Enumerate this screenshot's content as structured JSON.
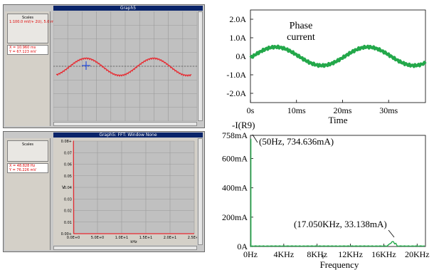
{
  "graph1": {
    "title": "Graph5",
    "scales_header": "Scales",
    "scales_line": "1:100.0 mV/+ 2U), 5.0 ms",
    "cursor_x": "X = 10.960 ms",
    "cursor_y": "Y = 67.123 mV"
  },
  "graph2": {
    "title": "Graph5: FFT: Window None",
    "scales_header": "Scales",
    "cursor_x": "X = 48.828 Hz",
    "cursor_y": "Y = 76.226 mV",
    "y_ticks": [
      "0.08+",
      "0.07",
      "0.06",
      "0.05",
      "0.04",
      "0.03",
      "0.02",
      "0.01",
      "0.00+"
    ],
    "x_ticks": [
      "0.0E+0",
      "5.0E+0",
      "1.0E+1",
      "1.5E+1",
      "2.0E+1",
      "2.5E+1"
    ],
    "x_unit": "kHz",
    "y_unit": "V"
  },
  "chart_data": [
    {
      "type": "line",
      "panel": "oscilloscope time trace",
      "x": [
        0,
        5,
        10,
        15,
        20,
        25,
        30
      ],
      "values": [
        -0.3,
        0.4,
        0.6,
        -0.4,
        -0.55,
        0.5,
        0.45
      ],
      "xlabel": "",
      "ylabel": "",
      "grid": true,
      "colors": {
        "trace": "#e8282f",
        "plot_bg": "#c0c0c0",
        "grid": "#9a9a9a"
      }
    },
    {
      "type": "line",
      "panel": "oscilloscope FFT",
      "x": [
        0,
        0.05,
        0.1,
        5,
        10,
        15,
        17,
        20,
        25
      ],
      "values": [
        0.08,
        0.08,
        0.0,
        0.0,
        0.0,
        0.0,
        0.0,
        0.0,
        0.0
      ],
      "grid": true,
      "colors": {
        "trace": "#e8282f",
        "plot_bg": "#c0c0c0",
        "grid": "#9a9a9a"
      }
    },
    {
      "type": "line",
      "title": "Phase current",
      "xlabel": "Time",
      "y_ticks": [
        "2.0A",
        "1.0A",
        "0A",
        "-1.0A",
        "-2.0A"
      ],
      "x_ticks": [
        "0s",
        "10ms",
        "20ms",
        "30ms"
      ],
      "ylim": [
        -2.5,
        2.5
      ],
      "xlim": [
        0,
        38
      ],
      "x": [
        0,
        2,
        5,
        8,
        11,
        14,
        17,
        20,
        22,
        25,
        28,
        31,
        34,
        37,
        38
      ],
      "values": [
        0.0,
        0.22,
        0.5,
        0.25,
        -0.2,
        -0.5,
        -0.28,
        0.15,
        0.35,
        0.5,
        0.22,
        -0.25,
        -0.5,
        -0.3,
        -0.22
      ],
      "colors": {
        "trace": "#23a84a"
      }
    },
    {
      "type": "line",
      "title": "-I(R9)",
      "xlabel": "Frequency",
      "y_ticks": [
        "758mA",
        "600mA",
        "400mA",
        "200mA",
        "0A"
      ],
      "x_ticks": [
        "0Hz",
        "4KHz",
        "8KHz",
        "12KHz",
        "16KHz",
        "20KHz"
      ],
      "ylim": [
        0,
        758
      ],
      "xlim": [
        0,
        21000
      ],
      "x": [
        0,
        50,
        100,
        200,
        1000,
        5000,
        10000,
        15000,
        17050,
        17300,
        18000,
        21000
      ],
      "values": [
        0,
        734.636,
        0,
        0,
        0,
        0,
        0,
        0,
        33.138,
        0,
        0,
        0
      ],
      "annotations": [
        "(50Hz,    734.636mA)",
        "(17.050KHz,    33.138mA)"
      ],
      "colors": {
        "trace": "#23a84a"
      }
    }
  ]
}
